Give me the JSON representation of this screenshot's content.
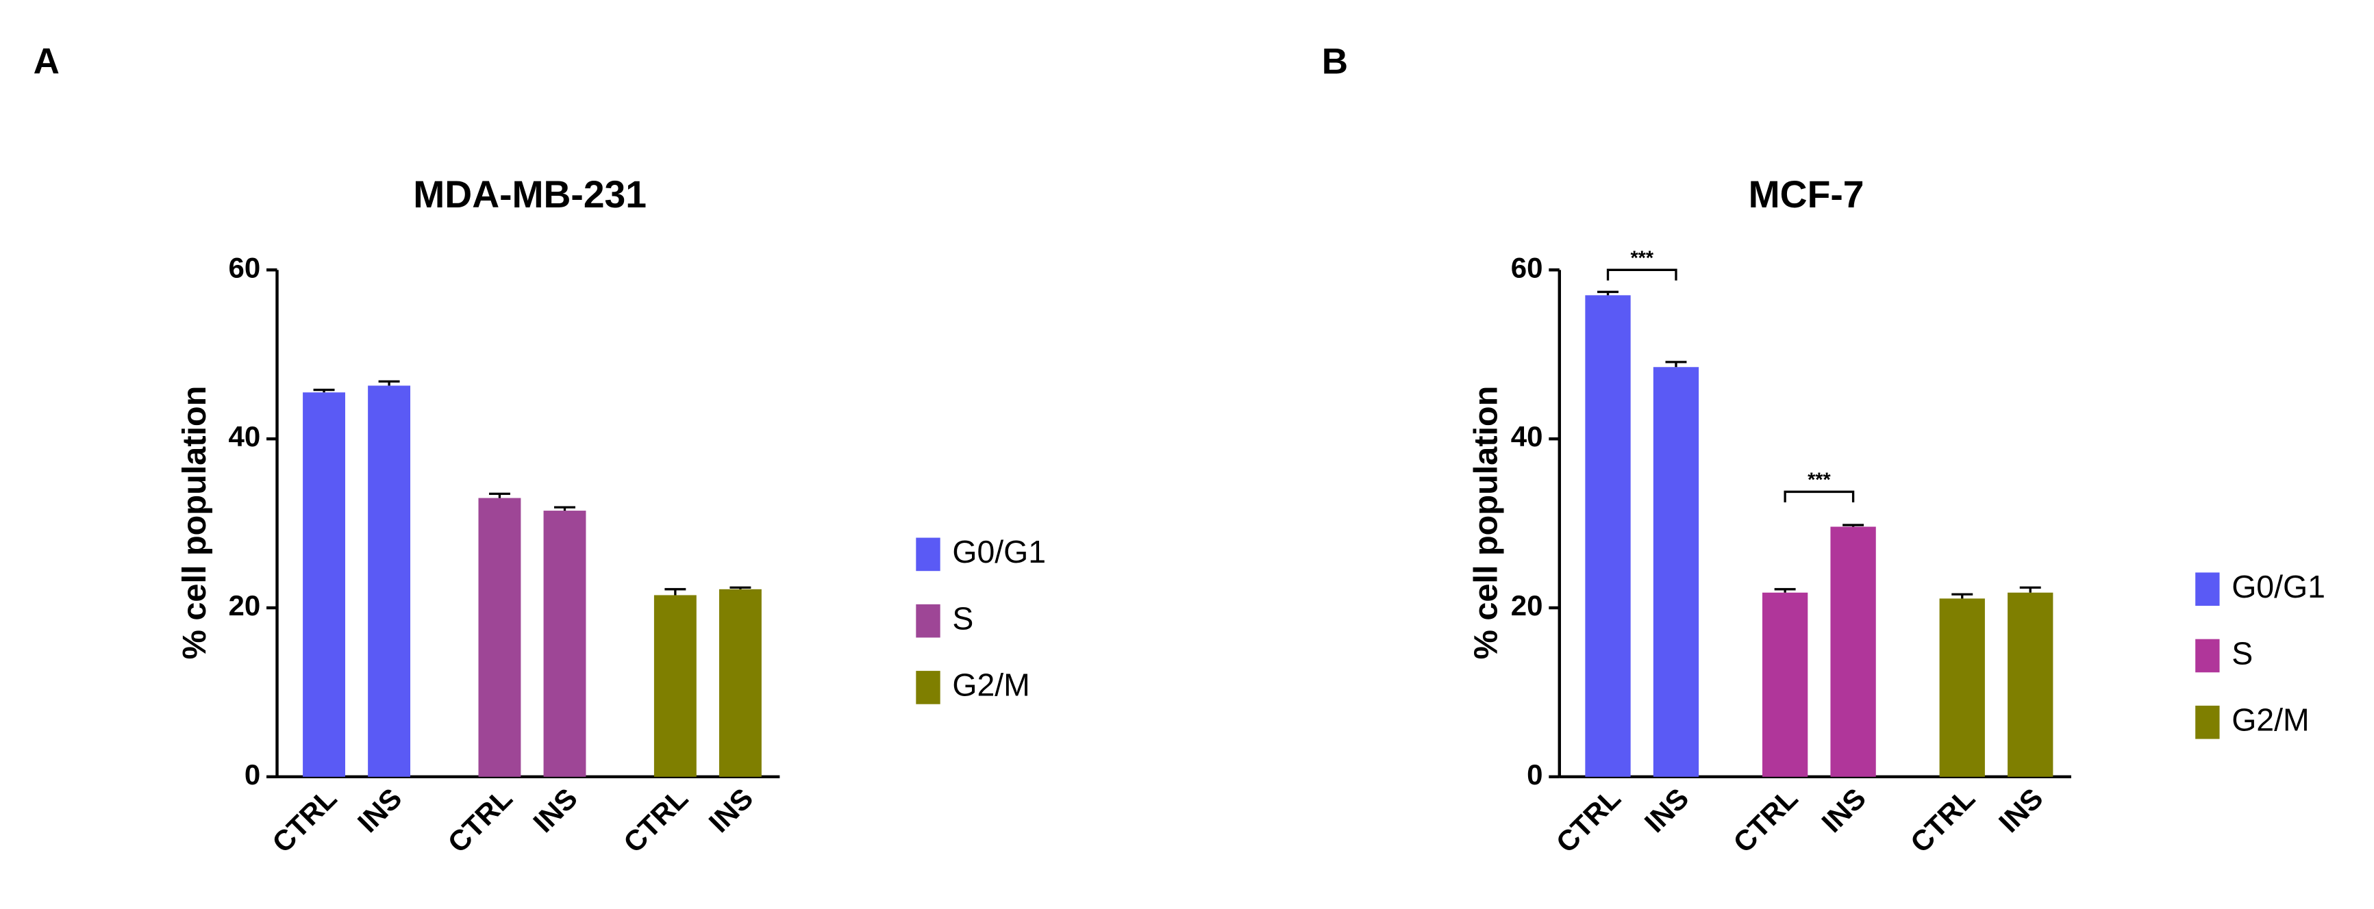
{
  "chart_data": [
    {
      "type": "bar",
      "label": "A",
      "title": "MDA-MB-231",
      "ylabel": "% cell population",
      "categories": [
        "CTRL",
        "INS"
      ],
      "series": [
        {
          "name": "G0/G1",
          "color": "#5a5af5",
          "values": [
            45.5,
            46.3
          ],
          "errors": [
            0.3,
            0.5
          ]
        },
        {
          "name": "S",
          "color": "#9e4696",
          "values": [
            33,
            31.5
          ],
          "errors": [
            0.5,
            0.4
          ]
        },
        {
          "name": "G2/M",
          "color": "#7f7f00",
          "values": [
            21.5,
            22.2
          ],
          "errors": [
            0.7,
            0.2
          ]
        }
      ],
      "ylim": [
        0,
        60
      ],
      "yticks": [
        0,
        20,
        40,
        60
      ],
      "annotations": []
    },
    {
      "type": "bar",
      "label": "B",
      "title": "MCF-7",
      "ylabel": "% cell population",
      "categories": [
        "CTRL",
        "INS"
      ],
      "series": [
        {
          "name": "G0/G1",
          "color": "#5a5af5",
          "values": [
            57,
            48.5
          ],
          "errors": [
            0.4,
            0.6
          ]
        },
        {
          "name": "S",
          "color": "#b0369a",
          "values": [
            21.8,
            29.6
          ],
          "errors": [
            0.4,
            0.2
          ]
        },
        {
          "name": "G2/M",
          "color": "#7f7f00",
          "values": [
            21.1,
            21.8
          ],
          "errors": [
            0.5,
            0.6
          ]
        }
      ],
      "ylim": [
        0,
        60
      ],
      "yticks": [
        0,
        20,
        40,
        60
      ],
      "annotations": [
        "***",
        "***"
      ]
    }
  ]
}
